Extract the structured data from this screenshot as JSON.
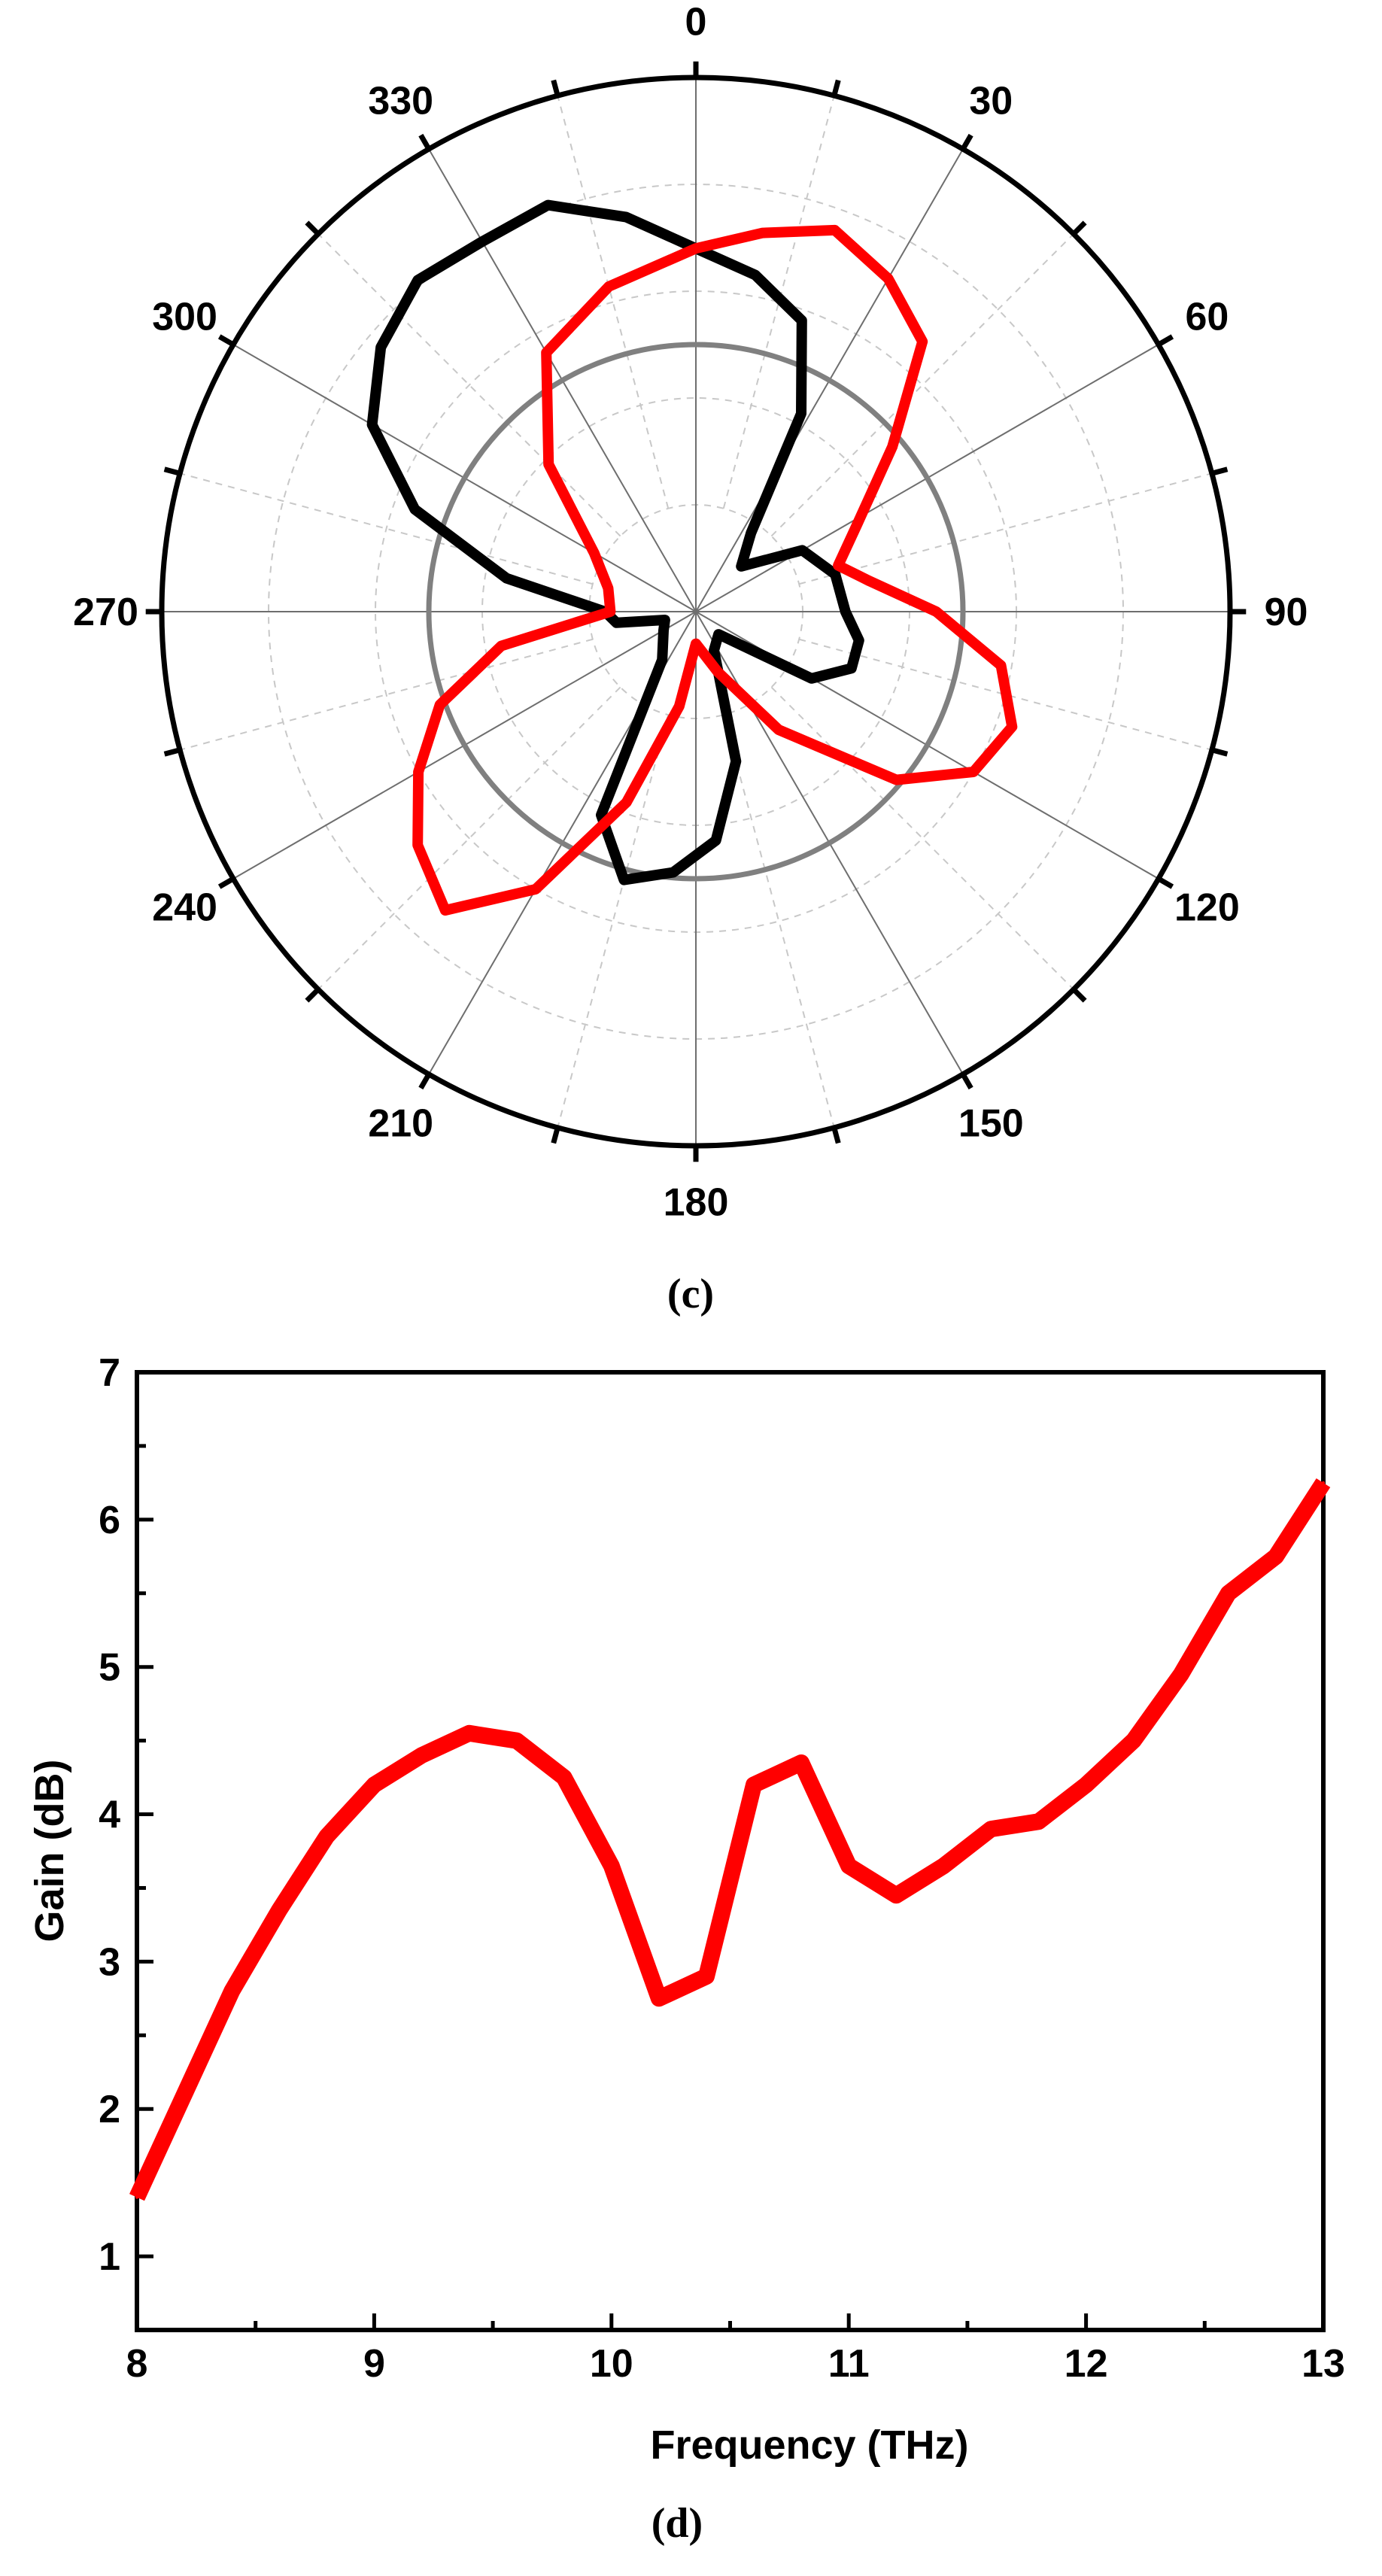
{
  "panels": {
    "c": "(c)",
    "d": "(d)"
  },
  "chart_data": [
    {
      "type": "polar",
      "panel": "c",
      "angle_direction": "clockwise",
      "zero_location": "top",
      "angle_labels": [
        "0",
        "30",
        "60",
        "90",
        "120",
        "150",
        "180",
        "210",
        "240",
        "270",
        "300",
        "330"
      ],
      "angle_label_values": [
        0,
        30,
        60,
        90,
        120,
        150,
        180,
        210,
        240,
        270,
        300,
        330
      ],
      "radial_range": [
        0,
        1
      ],
      "reference_circle_radius": 0.5,
      "grid": true,
      "series": [
        {
          "color": "#000000",
          "points": [
            {
              "angle": 0,
              "r": 0.68
            },
            {
              "angle": 10,
              "r": 0.64
            },
            {
              "angle": 20,
              "r": 0.58
            },
            {
              "angle": 28,
              "r": 0.42
            },
            {
              "angle": 35,
              "r": 0.18
            },
            {
              "angle": 45,
              "r": 0.12
            },
            {
              "angle": 60,
              "r": 0.23
            },
            {
              "angle": 75,
              "r": 0.27
            },
            {
              "angle": 90,
              "r": 0.28
            },
            {
              "angle": 100,
              "r": 0.31
            },
            {
              "angle": 110,
              "r": 0.31
            },
            {
              "angle": 120,
              "r": 0.25
            },
            {
              "angle": 135,
              "r": 0.06
            },
            {
              "angle": 155,
              "r": 0.08
            },
            {
              "angle": 165,
              "r": 0.29
            },
            {
              "angle": 175,
              "r": 0.43
            },
            {
              "angle": 185,
              "r": 0.49
            },
            {
              "angle": 195,
              "r": 0.52
            },
            {
              "angle": 205,
              "r": 0.42
            },
            {
              "angle": 215,
              "r": 0.11
            },
            {
              "angle": 240,
              "r": 0.07
            },
            {
              "angle": 255,
              "r": 0.06
            },
            {
              "angle": 262,
              "r": 0.15
            },
            {
              "angle": 270,
              "r": 0.17
            },
            {
              "angle": 280,
              "r": 0.36
            },
            {
              "angle": 290,
              "r": 0.56
            },
            {
              "angle": 300,
              "r": 0.7
            },
            {
              "angle": 310,
              "r": 0.77
            },
            {
              "angle": 320,
              "r": 0.81
            },
            {
              "angle": 330,
              "r": 0.8
            },
            {
              "angle": 340,
              "r": 0.81
            },
            {
              "angle": 350,
              "r": 0.75
            }
          ]
        },
        {
          "color": "#ff0000",
          "points": [
            {
              "angle": 0,
              "r": 0.68
            },
            {
              "angle": 10,
              "r": 0.72
            },
            {
              "angle": 20,
              "r": 0.76
            },
            {
              "angle": 30,
              "r": 0.72
            },
            {
              "angle": 40,
              "r": 0.66
            },
            {
              "angle": 50,
              "r": 0.48
            },
            {
              "angle": 62,
              "r": 0.34
            },
            {
              "angle": 72,
              "r": 0.28
            },
            {
              "angle": 80,
              "r": 0.33
            },
            {
              "angle": 90,
              "r": 0.45
            },
            {
              "angle": 100,
              "r": 0.58
            },
            {
              "angle": 110,
              "r": 0.63
            },
            {
              "angle": 120,
              "r": 0.6
            },
            {
              "angle": 130,
              "r": 0.49
            },
            {
              "angle": 145,
              "r": 0.27
            },
            {
              "angle": 160,
              "r": 0.12
            },
            {
              "angle": 180,
              "r": 0.06
            },
            {
              "angle": 190,
              "r": 0.18
            },
            {
              "angle": 200,
              "r": 0.38
            },
            {
              "angle": 210,
              "r": 0.6
            },
            {
              "angle": 220,
              "r": 0.73
            },
            {
              "angle": 230,
              "r": 0.68
            },
            {
              "angle": 240,
              "r": 0.6
            },
            {
              "angle": 250,
              "r": 0.51
            },
            {
              "angle": 260,
              "r": 0.37
            },
            {
              "angle": 270,
              "r": 0.16
            },
            {
              "angle": 285,
              "r": 0.17
            },
            {
              "angle": 300,
              "r": 0.22
            },
            {
              "angle": 315,
              "r": 0.39
            },
            {
              "angle": 330,
              "r": 0.56
            },
            {
              "angle": 345,
              "r": 0.63
            }
          ]
        }
      ]
    },
    {
      "type": "line",
      "panel": "d",
      "xlabel": "Frequency (THz)",
      "ylabel": "Gain (dB)",
      "xlim": [
        8,
        13
      ],
      "ylim": [
        0.5,
        7
      ],
      "xticks": [
        8,
        9,
        10,
        11,
        12,
        13
      ],
      "yticks": [
        1,
        2,
        3,
        4,
        5,
        6,
        7
      ],
      "grid": false,
      "series": [
        {
          "color": "#ff0000",
          "x": [
            8.0,
            8.2,
            8.4,
            8.6,
            8.8,
            9.0,
            9.2,
            9.4,
            9.6,
            9.8,
            10.0,
            10.2,
            10.4,
            10.6,
            10.8,
            11.0,
            11.2,
            11.4,
            11.6,
            11.8,
            12.0,
            12.2,
            12.4,
            12.6,
            12.8,
            13.0
          ],
          "y": [
            1.4,
            2.1,
            2.8,
            3.35,
            3.85,
            4.2,
            4.4,
            4.55,
            4.5,
            4.25,
            3.65,
            2.75,
            2.9,
            4.2,
            4.35,
            3.65,
            3.45,
            3.65,
            3.9,
            3.95,
            4.2,
            4.5,
            4.95,
            5.5,
            5.75,
            6.25
          ]
        }
      ]
    }
  ]
}
